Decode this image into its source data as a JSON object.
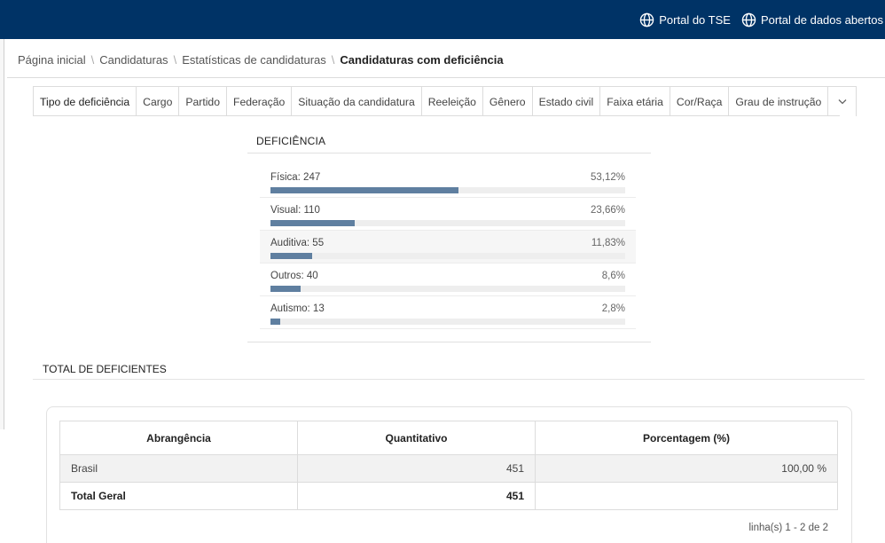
{
  "header": {
    "links": [
      {
        "label": "Portal do TSE",
        "icon": "globe-icon"
      },
      {
        "label": "Portal de dados abertos",
        "icon": "globe-icon"
      }
    ]
  },
  "breadcrumb": {
    "items": [
      "Página inicial",
      "Candidaturas",
      "Estatísticas de candidaturas"
    ],
    "current": "Candidaturas com deficiência",
    "separator": "\\"
  },
  "tabs": [
    "Tipo de deficiência",
    "Cargo",
    "Partido",
    "Federação",
    "Situação da candidatura",
    "Reeleição",
    "Gênero",
    "Estado civil",
    "Faixa etária",
    "Cor/Raça",
    "Grau de instrução"
  ],
  "deficiencia": {
    "title": "DEFICIÊNCIA",
    "bar_color": "#5f7fa0",
    "rows": [
      {
        "label": "Física: 247",
        "pct": "53,12%",
        "value": 53.12
      },
      {
        "label": "Visual: 110",
        "pct": "23,66%",
        "value": 23.66
      },
      {
        "label": "Auditiva: 55",
        "pct": "11,83%",
        "value": 11.83
      },
      {
        "label": "Outros: 40",
        "pct": "8,6%",
        "value": 8.6
      },
      {
        "label": "Autismo: 13",
        "pct": "2,8%",
        "value": 2.8
      }
    ]
  },
  "total": {
    "title": "TOTAL DE DEFICIENTES",
    "headers": [
      "Abrangência",
      "Quantitativo",
      "Porcentagem (%)"
    ],
    "rows": [
      {
        "abrangencia": "Brasil",
        "quantitativo": "451",
        "porcentagem": "100,00 %"
      }
    ],
    "footer": {
      "label": "Total Geral",
      "quantitativo": "451"
    },
    "pagination": "linha(s) 1 - 2 de 2"
  }
}
